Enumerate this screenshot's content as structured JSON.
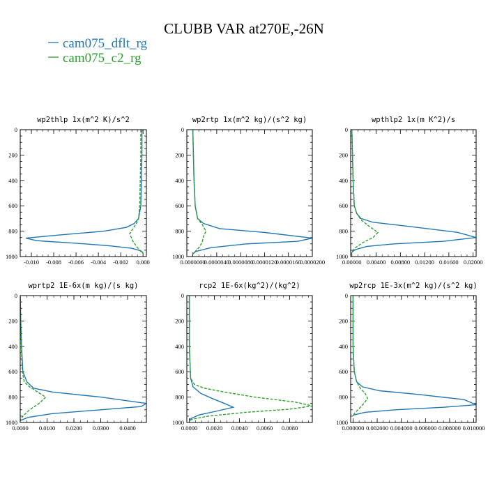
{
  "title": "CLUBB VAR at270E,-26N",
  "colors": {
    "dflt": "#1f77b4",
    "c2": "#2ca02c"
  },
  "legend": [
    {
      "label": "cam075_dflt_rg",
      "color": "#1f77b4"
    },
    {
      "label": "cam075_c2_rg",
      "color": "#2ca02c"
    }
  ],
  "chart_data": [
    {
      "type": "line",
      "title": "wp2thlp  1x(m^2 K)/s^2",
      "xlim": [
        -0.011,
        0.0003
      ],
      "ylim": [
        1000,
        0
      ],
      "xticks": [
        -0.01,
        -0.008,
        -0.006,
        -0.004,
        -0.002,
        0.0
      ],
      "xtick_labels": [
        "-0.010",
        "-0.008",
        "-0.006",
        "-0.004",
        "-0.002",
        "0.000"
      ],
      "yticks": [
        0,
        200,
        400,
        600,
        800,
        1000
      ],
      "ytick_labels": [
        "0",
        "200",
        "400",
        "600",
        "800",
        "1000"
      ],
      "series": [
        {
          "name": "cam075_dflt_rg",
          "style": "solid",
          "x": [
            -0.0001,
            -0.0001,
            -0.00015,
            -0.0002,
            -0.0004,
            -0.0008,
            -0.0015,
            -0.0035,
            -0.0075,
            -0.0105,
            -0.0095,
            -0.006,
            -0.003,
            -0.001,
            -0.0002,
            0.0
          ],
          "y": [
            0,
            200,
            400,
            600,
            700,
            740,
            770,
            800,
            830,
            855,
            875,
            895,
            915,
            935,
            955,
            970
          ]
        },
        {
          "name": "cam075_c2_rg",
          "style": "dashed",
          "x": [
            -0.0002,
            -0.0002,
            -0.00025,
            -0.0003,
            -0.0004,
            -0.0006,
            -0.0009,
            -0.0012,
            -0.0009,
            -0.0005,
            -0.0002,
            0.0
          ],
          "y": [
            0,
            200,
            400,
            600,
            700,
            740,
            780,
            820,
            880,
            930,
            960,
            975
          ]
        }
      ]
    },
    {
      "type": "line",
      "title": "wp2rtp  1x(m^2 kg)/(s^2 kg)",
      "xlim": [
        -1e-06,
        2e-05
      ],
      "ylim": [
        1000,
        0
      ],
      "xticks": [
        0,
        4e-06,
        8e-06,
        1.2e-05,
        1.6e-05,
        2e-05
      ],
      "xtick_labels": [
        "0.0000000",
        "0.0000040",
        "0.0000080",
        "0.0000120",
        "0.0000160",
        "0.0000200"
      ],
      "yticks": [
        0,
        200,
        400,
        600,
        800,
        1000
      ],
      "ytick_labels": [
        "0",
        "200",
        "400",
        "600",
        "800",
        "1000"
      ],
      "series": [
        {
          "name": "cam075_dflt_rg",
          "style": "solid",
          "x": [
            0.0,
            1e-07,
            2e-07,
            4e-07,
            8e-07,
            1.8e-06,
            4.5e-06,
            1.2e-05,
            2e-05,
            1.75e-05,
            9e-06,
            3e-06,
            5e-07,
            0.0
          ],
          "y": [
            0,
            200,
            400,
            600,
            700,
            740,
            780,
            810,
            855,
            880,
            900,
            930,
            960,
            980
          ]
        },
        {
          "name": "cam075_c2_rg",
          "style": "dashed",
          "x": [
            0.0,
            1e-07,
            2e-07,
            4e-07,
            8e-07,
            1.6e-06,
            2.2e-06,
            1.8e-06,
            1.6e-06,
            1.2e-06,
            4e-07,
            0.0
          ],
          "y": [
            0,
            200,
            400,
            600,
            700,
            750,
            800,
            840,
            880,
            920,
            960,
            980
          ]
        }
      ]
    },
    {
      "type": "line",
      "title": "wpthlp2  1x(m K^2)/s",
      "xlim": [
        -0.0002,
        0.0205
      ],
      "ylim": [
        1000,
        0
      ],
      "xticks": [
        0,
        0.004,
        0.008,
        0.012,
        0.016,
        0.02
      ],
      "xtick_labels": [
        "0.00000",
        "0.00400",
        "0.00800",
        "0.01200",
        "0.01600",
        "0.02000"
      ],
      "yticks": [
        0,
        200,
        400,
        600,
        800,
        1000
      ],
      "ytick_labels": [
        "0",
        "200",
        "400",
        "600",
        "800",
        "1000"
      ],
      "series": [
        {
          "name": "cam075_dflt_rg",
          "style": "solid",
          "x": [
            0.0,
            0.0001,
            0.0002,
            0.0004,
            0.0008,
            0.0015,
            0.0035,
            0.009,
            0.0175,
            0.0205,
            0.015,
            0.007,
            0.0025,
            0.0006,
            0.0
          ],
          "y": [
            0,
            200,
            400,
            600,
            660,
            700,
            730,
            760,
            810,
            850,
            880,
            900,
            920,
            945,
            965
          ]
        },
        {
          "name": "cam075_c2_rg",
          "style": "dashed",
          "x": [
            0.0,
            0.0001,
            0.0002,
            0.0004,
            0.0008,
            0.0015,
            0.0028,
            0.0043,
            0.0035,
            0.0018,
            0.0006,
            0.0
          ],
          "y": [
            0,
            200,
            400,
            600,
            660,
            710,
            760,
            810,
            850,
            890,
            930,
            960
          ]
        }
      ]
    },
    {
      "type": "line",
      "title": "wprtp2  1E-6x(m kg)/(s kg)",
      "xlim": [
        0,
        0.047
      ],
      "ylim": [
        1000,
        0
      ],
      "xticks": [
        0,
        0.01,
        0.02,
        0.03,
        0.04
      ],
      "xtick_labels": [
        "0.0000",
        "0.0100",
        "0.0200",
        "0.0300",
        "0.0400"
      ],
      "yticks": [
        0,
        200,
        400,
        600,
        800,
        1000
      ],
      "ytick_labels": [
        "0",
        "200",
        "400",
        "600",
        "800",
        "1000"
      ],
      "series": [
        {
          "name": "cam075_dflt_rg",
          "style": "solid",
          "x": [
            0.0,
            0.0002,
            0.0005,
            0.001,
            0.0025,
            0.005,
            0.012,
            0.03,
            0.047,
            0.045,
            0.03,
            0.012,
            0.003,
            0.0
          ],
          "y": [
            0,
            200,
            400,
            600,
            680,
            730,
            760,
            800,
            850,
            875,
            900,
            930,
            960,
            985
          ]
        },
        {
          "name": "cam075_c2_rg",
          "style": "dashed",
          "x": [
            0.0,
            0.0002,
            0.0004,
            0.0008,
            0.0015,
            0.0035,
            0.0065,
            0.0095,
            0.007,
            0.0035,
            0.001,
            0.0
          ],
          "y": [
            0,
            200,
            400,
            600,
            680,
            720,
            760,
            800,
            850,
            900,
            950,
            985
          ]
        }
      ]
    },
    {
      "type": "line",
      "title": "rcp2  1E-6x(kg^2)/(kg^2)",
      "xlim": [
        -0.0002,
        0.0098
      ],
      "ylim": [
        1000,
        0
      ],
      "xticks": [
        0,
        0.002,
        0.004,
        0.006,
        0.008
      ],
      "xtick_labels": [
        "0.0000",
        "0.0020",
        "0.0040",
        "0.0060",
        "0.0080"
      ],
      "yticks": [
        0,
        200,
        400,
        600,
        800,
        1000
      ],
      "ytick_labels": [
        "0",
        "200",
        "400",
        "600",
        "800",
        "1000"
      ],
      "series": [
        {
          "name": "cam075_dflt_rg",
          "style": "solid",
          "x": [
            0.0,
            0.0,
            0.0,
            0.0001,
            0.0003,
            0.0009,
            0.0018,
            0.0028,
            0.0035,
            0.0022,
            0.0008,
            0.0001,
            0.0
          ],
          "y": [
            0,
            200,
            400,
            650,
            720,
            770,
            810,
            850,
            880,
            910,
            940,
            970,
            990
          ]
        },
        {
          "name": "cam075_c2_rg",
          "style": "dashed",
          "x": [
            0.0,
            0.0,
            0.0,
            0.0001,
            0.0004,
            0.0012,
            0.0028,
            0.0052,
            0.0085,
            0.0098,
            0.008,
            0.0045,
            0.0015,
            0.0002,
            0.0
          ],
          "y": [
            0,
            200,
            400,
            650,
            700,
            730,
            760,
            800,
            840,
            870,
            895,
            920,
            950,
            975,
            990
          ]
        }
      ]
    },
    {
      "type": "line",
      "title": "wp2rcp  1E-3x(m^2 kg)/(s^2 kg)",
      "xlim": [
        -0.0002,
        0.0102
      ],
      "ylim": [
        1000,
        0
      ],
      "xticks": [
        0,
        0.002,
        0.004,
        0.006,
        0.008,
        0.01
      ],
      "xtick_labels": [
        "0.000000",
        "0.002000",
        "0.004000",
        "0.006000",
        "0.008000",
        "0.010000"
      ],
      "yticks": [
        0,
        200,
        400,
        600,
        800,
        1000
      ],
      "ytick_labels": [
        "0",
        "200",
        "400",
        "600",
        "800",
        "1000"
      ],
      "series": [
        {
          "name": "cam075_dflt_rg",
          "style": "solid",
          "x": [
            0.0,
            0.0,
            0.0,
            0.0001,
            0.0003,
            0.0008,
            0.0022,
            0.0055,
            0.0092,
            0.0102,
            0.0075,
            0.0035,
            0.001,
            0.0001,
            0.0
          ],
          "y": [
            0,
            200,
            400,
            600,
            680,
            720,
            750,
            780,
            820,
            860,
            880,
            900,
            920,
            940,
            950
          ]
        },
        {
          "name": "cam075_c2_rg",
          "style": "dashed",
          "x": [
            0.0,
            0.0,
            0.0,
            0.0001,
            0.0003,
            0.0006,
            0.001,
            0.0012,
            0.0009,
            0.0005,
            0.0001,
            0.0
          ],
          "y": [
            0,
            200,
            400,
            600,
            680,
            730,
            770,
            810,
            850,
            890,
            930,
            950
          ]
        }
      ]
    }
  ]
}
